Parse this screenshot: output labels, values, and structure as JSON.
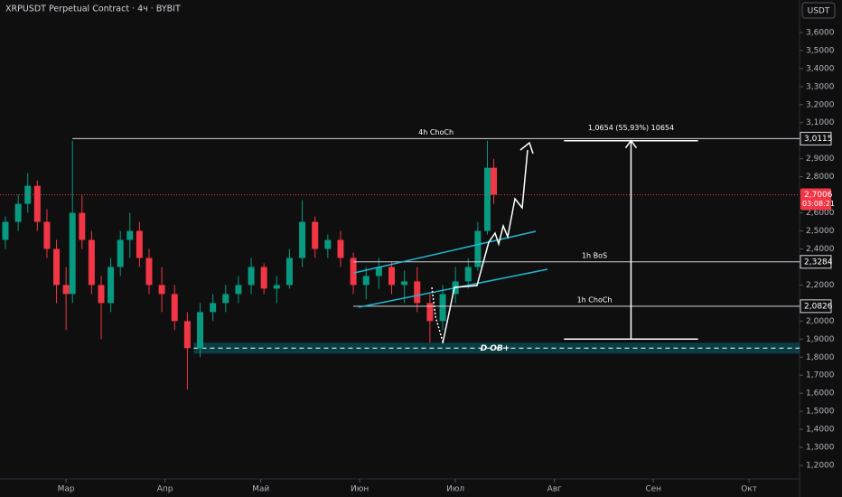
{
  "header": {
    "title": "XRPUSDT Perpetual Contract · 4ч · BYBIT",
    "currency_button": "USDT"
  },
  "chart_data": {
    "type": "candlestick",
    "x": [
      41,
      45,
      48,
      51,
      54,
      57,
      60,
      62,
      65,
      68,
      71,
      74,
      77,
      80,
      83,
      86,
      90,
      94,
      98,
      102,
      106,
      110,
      114,
      118,
      122,
      126,
      130,
      134,
      138,
      142,
      146,
      150,
      154,
      158,
      162,
      166,
      170,
      174,
      178,
      182,
      186,
      189,
      192,
      194
    ],
    "open": [
      2.45,
      2.55,
      2.65,
      2.75,
      2.55,
      2.4,
      2.2,
      2.15,
      2.6,
      2.45,
      2.2,
      2.1,
      2.3,
      2.45,
      2.5,
      2.35,
      2.2,
      2.15,
      2.0,
      1.85,
      2.05,
      2.1,
      2.15,
      2.2,
      2.3,
      2.18,
      2.2,
      2.35,
      2.55,
      2.4,
      2.45,
      2.35,
      2.2,
      2.25,
      2.3,
      2.2,
      2.22,
      2.1,
      2.0,
      2.15,
      2.22,
      2.3,
      2.5,
      2.85
    ],
    "high": [
      2.58,
      2.7,
      2.82,
      2.78,
      2.62,
      2.45,
      2.3,
      3.0,
      2.7,
      2.5,
      2.25,
      2.35,
      2.5,
      2.6,
      2.55,
      2.4,
      2.3,
      2.2,
      2.05,
      2.1,
      2.15,
      2.2,
      2.25,
      2.35,
      2.32,
      2.25,
      2.4,
      2.67,
      2.58,
      2.48,
      2.5,
      2.38,
      2.3,
      2.35,
      2.33,
      2.28,
      2.3,
      2.15,
      2.2,
      2.3,
      2.35,
      2.55,
      3.0,
      2.9
    ],
    "low": [
      2.4,
      2.5,
      2.6,
      2.5,
      2.35,
      2.1,
      1.95,
      2.1,
      2.4,
      2.15,
      1.9,
      2.05,
      2.25,
      2.35,
      2.3,
      2.15,
      2.05,
      1.95,
      1.62,
      1.8,
      2.0,
      2.05,
      2.1,
      2.15,
      2.15,
      2.1,
      2.18,
      2.3,
      2.35,
      2.35,
      2.3,
      2.15,
      2.12,
      2.18,
      2.15,
      2.1,
      2.05,
      1.88,
      1.95,
      2.1,
      2.18,
      2.28,
      2.48,
      2.65
    ],
    "close": [
      2.55,
      2.65,
      2.75,
      2.55,
      2.4,
      2.2,
      2.15,
      2.6,
      2.45,
      2.2,
      2.1,
      2.3,
      2.45,
      2.5,
      2.35,
      2.2,
      2.15,
      2.0,
      1.85,
      2.05,
      2.1,
      2.15,
      2.2,
      2.3,
      2.18,
      2.2,
      2.35,
      2.55,
      2.4,
      2.45,
      2.35,
      2.2,
      2.25,
      2.3,
      2.2,
      2.22,
      2.1,
      2.0,
      2.15,
      2.22,
      2.3,
      2.5,
      2.85,
      2.7
    ],
    "up_color": "#089981",
    "down_color": "#f23645",
    "xlim": [
      39.3,
      289.8
    ],
    "xticks": [
      {
        "value": 60,
        "label": "Мар"
      },
      {
        "value": 91,
        "label": "Апр"
      },
      {
        "value": 121,
        "label": "Май"
      },
      {
        "value": 152,
        "label": "Июн"
      },
      {
        "value": 182,
        "label": "Июл"
      },
      {
        "value": 213,
        "label": "Авг"
      },
      {
        "value": 244,
        "label": "Сен"
      },
      {
        "value": 274,
        "label": "Окт"
      }
    ],
    "ylim": [
      1.125,
      3.78
    ],
    "yticks": [
      {
        "value": 1.2,
        "label": "1,2000"
      },
      {
        "value": 1.3,
        "label": "1,3000"
      },
      {
        "value": 1.4,
        "label": "1,4000"
      },
      {
        "value": 1.5,
        "label": "1,5000"
      },
      {
        "value": 1.6,
        "label": "1,6000"
      },
      {
        "value": 1.7,
        "label": "1,7000"
      },
      {
        "value": 1.8,
        "label": "1,8000"
      },
      {
        "value": 1.9,
        "label": "1,9000"
      },
      {
        "value": 2.0,
        "label": "2,0000"
      },
      {
        "value": 2.2,
        "label": "2,2000"
      },
      {
        "value": 2.4,
        "label": "2,4000"
      },
      {
        "value": 2.5,
        "label": "2,5000"
      },
      {
        "value": 2.6,
        "label": "2,6000"
      },
      {
        "value": 2.8,
        "label": "2,8000"
      },
      {
        "value": 2.9,
        "label": "2,9000"
      },
      {
        "value": 3.1,
        "label": "3,1000"
      },
      {
        "value": 3.2,
        "label": "3,2000"
      },
      {
        "value": 3.3,
        "label": "3,3000"
      },
      {
        "value": 3.4,
        "label": "3,4000"
      },
      {
        "value": 3.5,
        "label": "3,5000"
      },
      {
        "value": 3.6,
        "label": "3,6000"
      }
    ],
    "levels": [
      {
        "name": "4h ChoCh",
        "value": 3.0115,
        "value_label": "3,0115",
        "start": 62
      },
      {
        "name": "1h BoS",
        "value": 2.3284,
        "value_label": "2,3284",
        "start": 150
      },
      {
        "name": "1h ChoCh",
        "value": 2.0826,
        "value_label": "2,0826",
        "start": 150
      }
    ],
    "zone": {
      "name": "D OB+",
      "low": 1.82,
      "high": 1.88,
      "start": 100
    },
    "measure": {
      "text": "1,0654 (55,93%) 10654",
      "from": 1.9,
      "to": 3.0,
      "start": 216,
      "end": 258
    },
    "current_price": {
      "value": 2.7006,
      "label": "2,7006",
      "countdown": "03:08:21"
    }
  }
}
